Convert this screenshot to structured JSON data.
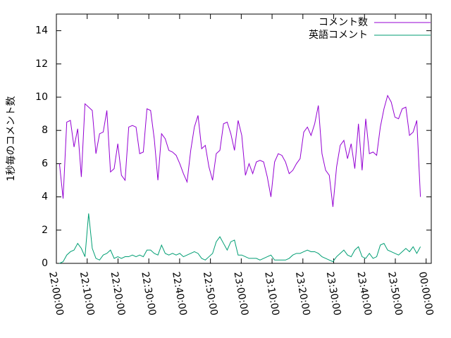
{
  "chart_data": {
    "type": "line",
    "y_label": "1秒毎のコメント数",
    "legend": "top-right",
    "ylim": [
      0,
      15
    ],
    "yticks": [
      0,
      2,
      4,
      6,
      8,
      10,
      12,
      14
    ],
    "xlim": [
      "22:00:00",
      "00:01:40"
    ],
    "xticks": [
      "22:00:00",
      "22:10:00",
      "22:20:00",
      "22:30:00",
      "22:40:00",
      "22:50:00",
      "23:00:00",
      "23:10:00",
      "23:20:00",
      "23:30:00",
      "23:40:00",
      "23:50:00",
      "00:00:00"
    ],
    "x": [
      "22:01:00",
      "22:02:11",
      "22:03:22",
      "22:04:33",
      "22:05:44",
      "22:06:55",
      "22:08:06",
      "22:09:17",
      "22:10:28",
      "22:11:39",
      "22:12:50",
      "22:14:01",
      "22:15:12",
      "22:16:23",
      "22:17:34",
      "22:18:45",
      "22:19:56",
      "22:21:07",
      "22:22:18",
      "22:23:29",
      "22:24:40",
      "22:25:51",
      "22:27:02",
      "22:28:13",
      "22:29:24",
      "22:30:35",
      "22:31:46",
      "22:32:57",
      "22:34:08",
      "22:35:19",
      "22:36:30",
      "22:37:41",
      "22:38:52",
      "22:40:03",
      "22:41:14",
      "22:42:25",
      "22:43:36",
      "22:44:47",
      "22:45:58",
      "22:47:09",
      "22:48:20",
      "22:49:31",
      "22:50:42",
      "22:51:53",
      "22:53:04",
      "22:54:15",
      "22:55:26",
      "22:56:37",
      "22:57:48",
      "22:58:59",
      "23:00:10",
      "23:01:21",
      "23:02:32",
      "23:03:43",
      "23:04:54",
      "23:06:05",
      "23:07:16",
      "23:08:27",
      "23:09:38",
      "23:10:49",
      "23:12:00",
      "23:13:11",
      "23:14:22",
      "23:15:33",
      "23:16:44",
      "23:17:55",
      "23:19:06",
      "23:20:17",
      "23:21:28",
      "23:22:39",
      "23:23:50",
      "23:25:01",
      "23:26:12",
      "23:27:23",
      "23:28:34",
      "23:29:45",
      "23:30:56",
      "23:32:07",
      "23:33:18",
      "23:34:29",
      "23:35:40",
      "23:36:51",
      "23:38:02",
      "23:39:13",
      "23:40:24",
      "23:41:35",
      "23:42:46",
      "23:43:57",
      "23:45:08",
      "23:46:19",
      "23:47:30",
      "23:48:41",
      "23:49:52",
      "23:51:03",
      "23:52:14",
      "23:53:25",
      "23:54:36",
      "23:55:47",
      "23:56:58",
      "23:58:09"
    ],
    "series": [
      {
        "name": "コメント数",
        "color": "#9400d3",
        "values": [
          6.0,
          3.9,
          8.5,
          8.6,
          7.0,
          8.1,
          5.2,
          9.6,
          9.4,
          9.2,
          6.6,
          7.8,
          7.9,
          9.2,
          5.5,
          5.7,
          7.2,
          5.3,
          5.0,
          8.2,
          8.3,
          8.2,
          6.6,
          6.7,
          9.3,
          9.2,
          7.5,
          5.0,
          7.8,
          7.5,
          6.8,
          6.7,
          6.5,
          6.0,
          5.4,
          4.9,
          6.8,
          8.2,
          8.9,
          6.9,
          7.1,
          5.8,
          5.0,
          6.6,
          6.8,
          8.4,
          8.5,
          7.8,
          6.8,
          8.6,
          7.7,
          5.3,
          6.0,
          5.4,
          6.1,
          6.2,
          6.1,
          5.2,
          4.0,
          6.1,
          6.6,
          6.5,
          6.1,
          5.4,
          5.6,
          6.0,
          6.3,
          7.9,
          8.2,
          7.7,
          8.4,
          9.5,
          6.6,
          5.6,
          5.3,
          3.4,
          5.8,
          7.1,
          7.4,
          6.3,
          7.2,
          5.7,
          8.4,
          5.6,
          8.7,
          6.6,
          6.7,
          6.5,
          8.2,
          9.3,
          10.1,
          9.7,
          8.8,
          8.7,
          9.3,
          9.4,
          7.7,
          7.9,
          8.6,
          4.0
        ]
      },
      {
        "name": "英語コメント",
        "color": "#009e73",
        "values": [
          0.0,
          0.1,
          0.5,
          0.7,
          0.8,
          1.2,
          0.9,
          0.4,
          3.0,
          0.9,
          0.3,
          0.2,
          0.5,
          0.6,
          0.8,
          0.3,
          0.4,
          0.3,
          0.4,
          0.4,
          0.5,
          0.4,
          0.5,
          0.4,
          0.8,
          0.8,
          0.6,
          0.5,
          1.1,
          0.6,
          0.5,
          0.6,
          0.5,
          0.6,
          0.4,
          0.5,
          0.6,
          0.7,
          0.6,
          0.3,
          0.2,
          0.4,
          0.6,
          1.3,
          1.6,
          1.2,
          0.8,
          1.3,
          1.4,
          0.5,
          0.5,
          0.4,
          0.3,
          0.3,
          0.3,
          0.2,
          0.3,
          0.4,
          0.5,
          0.2,
          0.2,
          0.2,
          0.2,
          0.3,
          0.5,
          0.6,
          0.6,
          0.7,
          0.8,
          0.7,
          0.7,
          0.6,
          0.4,
          0.3,
          0.2,
          0.1,
          0.4,
          0.6,
          0.8,
          0.5,
          0.4,
          0.8,
          1.0,
          0.4,
          0.3,
          0.6,
          0.3,
          0.4,
          1.1,
          1.2,
          0.8,
          0.7,
          0.6,
          0.5,
          0.7,
          0.9,
          0.7,
          1.0,
          0.6,
          1.0
        ]
      }
    ]
  }
}
